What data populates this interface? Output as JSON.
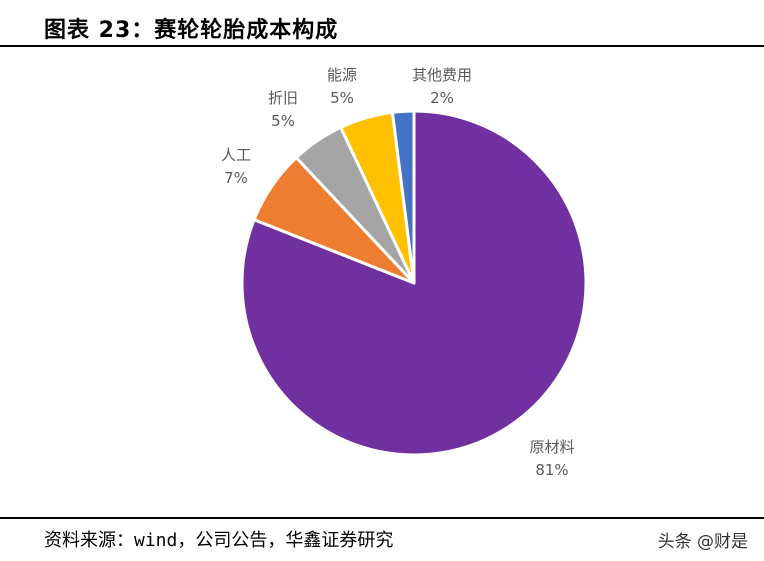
{
  "header": {
    "title": "图表 23：赛轮轮胎成本构成"
  },
  "footer": {
    "source": "资料来源：wind，公司公告，华鑫证券研究",
    "watermark": "头条 @财是"
  },
  "chart_data": {
    "type": "pie",
    "title": "图表 23：赛轮轮胎成本构成",
    "categories": [
      "原材料",
      "人工",
      "折旧",
      "能源",
      "其他费用"
    ],
    "values": [
      81,
      7,
      5,
      5,
      2
    ],
    "unit": "%",
    "colors": [
      "#7030A0",
      "#ED7D31",
      "#A5A5A5",
      "#FFC000",
      "#4472C4"
    ],
    "labels": [
      {
        "name": "原材料",
        "pct": "81%"
      },
      {
        "name": "人工",
        "pct": "7%"
      },
      {
        "name": "折旧",
        "pct": "5%"
      },
      {
        "name": "能源",
        "pct": "5%"
      },
      {
        "name": "其他费用",
        "pct": "2%"
      }
    ],
    "start_angle": "12 o'clock, clockwise",
    "legend": "none (data labels outside slices)"
  }
}
